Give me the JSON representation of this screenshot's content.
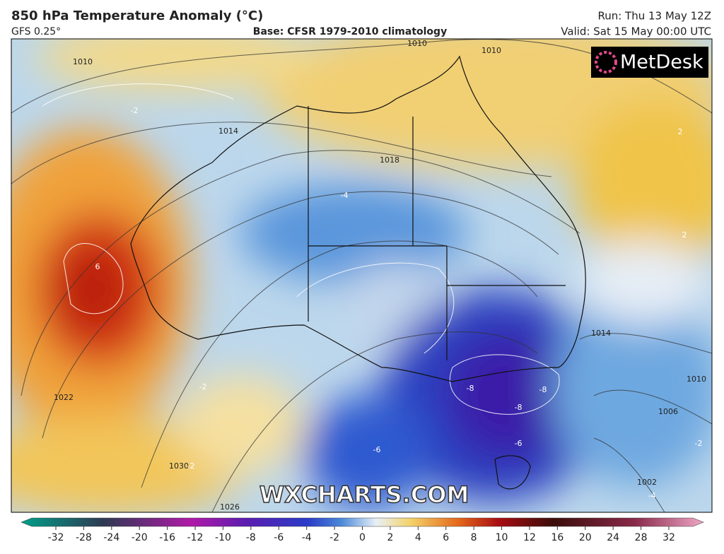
{
  "header": {
    "title": "850 hPa Temperature Anomaly (°C)",
    "model": "GFS 0.25°",
    "base": "Base: CFSR 1979-2010 climatology",
    "run": "Run: Thu 13 May 12Z",
    "valid": "Valid: Sat 15 May 00:00 UTC"
  },
  "logo": "MetDesk",
  "watermark": "WXCHARTS.COM",
  "isobar_labels": [
    "1010",
    "1010",
    "1010",
    "1014",
    "1018",
    "1022",
    "1030",
    "1026",
    "1014",
    "1010",
    "1006",
    "1002"
  ],
  "anomaly_labels": [
    "-2",
    "6",
    "-4",
    "-2",
    "-8",
    "-8",
    "-8",
    "-6",
    "-6",
    "-2",
    "-4",
    "2",
    "2",
    "-2"
  ],
  "colorbar": {
    "ticks": [
      -32,
      -28,
      -24,
      -20,
      -16,
      -12,
      -10,
      -8,
      -6,
      -4,
      -2,
      0,
      2,
      4,
      6,
      8,
      10,
      12,
      16,
      20,
      24,
      28,
      32
    ]
  }
}
